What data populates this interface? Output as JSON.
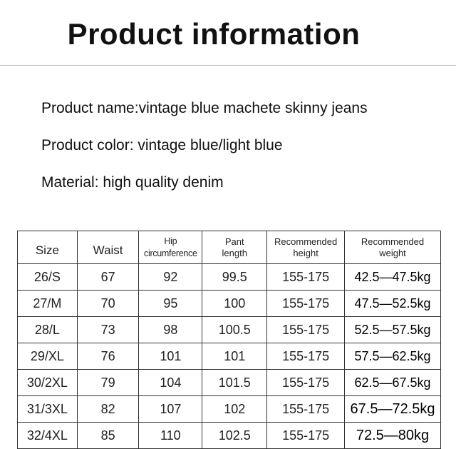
{
  "title": "Product information",
  "info": [
    "Product name:vintage blue machete skinny jeans",
    "Product color: vintage blue/light blue",
    "Material: high quality denim"
  ],
  "table": {
    "headers": [
      "Size",
      "Waist",
      "Hip circumference",
      "Pant length",
      "Recommended height",
      "Recommended weight"
    ],
    "rows": [
      [
        "26/S",
        "67",
        "92",
        "99.5",
        "155-175",
        "42.5—47.5kg"
      ],
      [
        "27/M",
        "70",
        "95",
        "100",
        "155-175",
        "47.5—52.5kg"
      ],
      [
        "28/L",
        "73",
        "98",
        "100.5",
        "155-175",
        "52.5—57.5kg"
      ],
      [
        "29/XL",
        "76",
        "101",
        "101",
        "155-175",
        "57.5—62.5kg"
      ],
      [
        "30/2XL",
        "79",
        "104",
        "101.5",
        "155-175",
        "62.5—67.5kg"
      ],
      [
        "31/3XL",
        "82",
        "107",
        "102",
        "155-175",
        "67.5—72.5kg"
      ],
      [
        "32/4XL",
        "85",
        "110",
        "102.5",
        "155-175",
        "72.5—80kg"
      ]
    ]
  }
}
